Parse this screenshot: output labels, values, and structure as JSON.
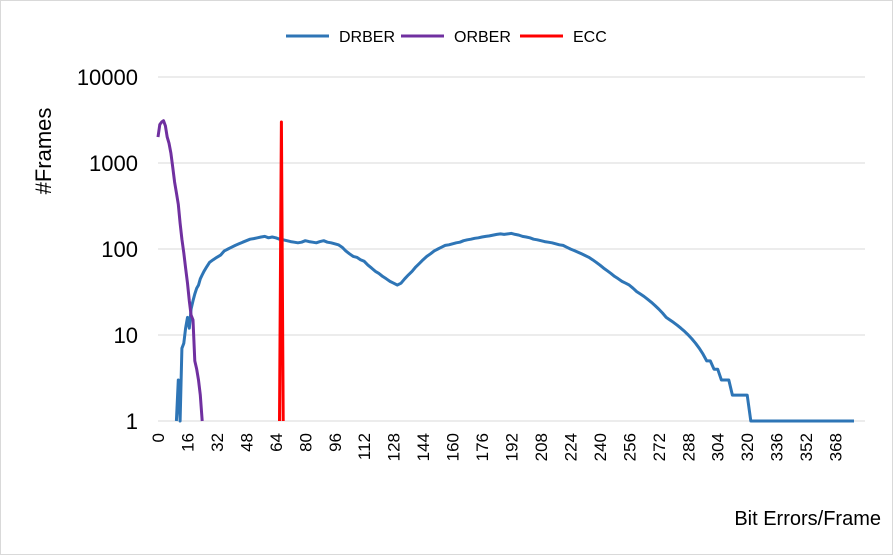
{
  "chart_data": {
    "type": "line",
    "title": "",
    "xlabel": "Bit Errors/Frame",
    "ylabel": "#Frames",
    "y_scale": "log",
    "ylim": [
      1,
      10000
    ],
    "xlim": [
      0,
      384
    ],
    "grid": "horizontal",
    "legend": {
      "position": "top",
      "entries": [
        "DRBER",
        "ORBER",
        "ECC"
      ]
    },
    "x_ticks": [
      0,
      16,
      32,
      48,
      64,
      80,
      96,
      112,
      128,
      144,
      160,
      176,
      192,
      208,
      224,
      240,
      256,
      272,
      288,
      304,
      320,
      336,
      352,
      368
    ],
    "y_ticks": [
      1,
      10,
      100,
      1000,
      10000
    ],
    "series": [
      {
        "name": "DRBER",
        "color": "#2e75b6",
        "points": [
          [
            10,
            1
          ],
          [
            11,
            3
          ],
          [
            12,
            1
          ],
          [
            13,
            7
          ],
          [
            14,
            8
          ],
          [
            15,
            12
          ],
          [
            16,
            16
          ],
          [
            17,
            12
          ],
          [
            18,
            20
          ],
          [
            19,
            25
          ],
          [
            20,
            30
          ],
          [
            21,
            35
          ],
          [
            22,
            38
          ],
          [
            23,
            45
          ],
          [
            24,
            50
          ],
          [
            25,
            55
          ],
          [
            26,
            60
          ],
          [
            28,
            70
          ],
          [
            30,
            75
          ],
          [
            32,
            80
          ],
          [
            34,
            85
          ],
          [
            36,
            95
          ],
          [
            38,
            100
          ],
          [
            40,
            105
          ],
          [
            42,
            110
          ],
          [
            44,
            115
          ],
          [
            46,
            120
          ],
          [
            48,
            125
          ],
          [
            50,
            130
          ],
          [
            52,
            132
          ],
          [
            54,
            135
          ],
          [
            56,
            138
          ],
          [
            58,
            140
          ],
          [
            60,
            135
          ],
          [
            62,
            138
          ],
          [
            64,
            135
          ],
          [
            66,
            130
          ],
          [
            68,
            128
          ],
          [
            70,
            125
          ],
          [
            72,
            122
          ],
          [
            74,
            120
          ],
          [
            76,
            118
          ],
          [
            78,
            120
          ],
          [
            80,
            125
          ],
          [
            82,
            122
          ],
          [
            84,
            120
          ],
          [
            86,
            118
          ],
          [
            88,
            122
          ],
          [
            90,
            125
          ],
          [
            92,
            120
          ],
          [
            94,
            118
          ],
          [
            96,
            115
          ],
          [
            98,
            112
          ],
          [
            100,
            105
          ],
          [
            102,
            95
          ],
          [
            104,
            88
          ],
          [
            106,
            82
          ],
          [
            108,
            80
          ],
          [
            110,
            75
          ],
          [
            112,
            72
          ],
          [
            114,
            65
          ],
          [
            116,
            60
          ],
          [
            118,
            55
          ],
          [
            120,
            52
          ],
          [
            122,
            48
          ],
          [
            124,
            45
          ],
          [
            126,
            42
          ],
          [
            128,
            40
          ],
          [
            130,
            38
          ],
          [
            132,
            40
          ],
          [
            134,
            45
          ],
          [
            136,
            50
          ],
          [
            138,
            55
          ],
          [
            140,
            62
          ],
          [
            142,
            68
          ],
          [
            144,
            75
          ],
          [
            146,
            82
          ],
          [
            148,
            88
          ],
          [
            150,
            95
          ],
          [
            152,
            100
          ],
          [
            154,
            105
          ],
          [
            156,
            110
          ],
          [
            158,
            112
          ],
          [
            160,
            115
          ],
          [
            162,
            118
          ],
          [
            164,
            120
          ],
          [
            166,
            125
          ],
          [
            168,
            128
          ],
          [
            170,
            130
          ],
          [
            172,
            133
          ],
          [
            174,
            135
          ],
          [
            176,
            138
          ],
          [
            178,
            140
          ],
          [
            180,
            142
          ],
          [
            182,
            145
          ],
          [
            184,
            148
          ],
          [
            186,
            150
          ],
          [
            188,
            148
          ],
          [
            190,
            150
          ],
          [
            192,
            152
          ],
          [
            194,
            148
          ],
          [
            196,
            145
          ],
          [
            198,
            140
          ],
          [
            200,
            138
          ],
          [
            202,
            135
          ],
          [
            204,
            130
          ],
          [
            206,
            128
          ],
          [
            208,
            125
          ],
          [
            210,
            122
          ],
          [
            212,
            120
          ],
          [
            214,
            118
          ],
          [
            216,
            115
          ],
          [
            218,
            112
          ],
          [
            220,
            110
          ],
          [
            222,
            105
          ],
          [
            224,
            100
          ],
          [
            226,
            96
          ],
          [
            228,
            92
          ],
          [
            230,
            88
          ],
          [
            232,
            84
          ],
          [
            234,
            80
          ],
          [
            236,
            75
          ],
          [
            238,
            70
          ],
          [
            240,
            65
          ],
          [
            242,
            60
          ],
          [
            244,
            56
          ],
          [
            246,
            52
          ],
          [
            248,
            48
          ],
          [
            250,
            45
          ],
          [
            252,
            42
          ],
          [
            254,
            40
          ],
          [
            256,
            38
          ],
          [
            258,
            35
          ],
          [
            260,
            32
          ],
          [
            262,
            30
          ],
          [
            264,
            28
          ],
          [
            266,
            26
          ],
          [
            268,
            24
          ],
          [
            270,
            22
          ],
          [
            272,
            20
          ],
          [
            274,
            18
          ],
          [
            276,
            16
          ],
          [
            278,
            15
          ],
          [
            280,
            14
          ],
          [
            282,
            13
          ],
          [
            284,
            12
          ],
          [
            286,
            11
          ],
          [
            288,
            10
          ],
          [
            290,
            9
          ],
          [
            292,
            8
          ],
          [
            294,
            7
          ],
          [
            296,
            6
          ],
          [
            298,
            5
          ],
          [
            300,
            5
          ],
          [
            302,
            4
          ],
          [
            304,
            4
          ],
          [
            306,
            3
          ],
          [
            308,
            3
          ],
          [
            310,
            3
          ],
          [
            312,
            2
          ],
          [
            314,
            2
          ],
          [
            316,
            2
          ],
          [
            318,
            2
          ],
          [
            320,
            2
          ],
          [
            322,
            1
          ],
          [
            324,
            1
          ],
          [
            326,
            1
          ],
          [
            328,
            1
          ],
          [
            330,
            1
          ],
          [
            332,
            1
          ],
          [
            334,
            1
          ],
          [
            336,
            1
          ],
          [
            338,
            1
          ],
          [
            340,
            1
          ],
          [
            342,
            1
          ],
          [
            344,
            1
          ],
          [
            346,
            1
          ],
          [
            348,
            1
          ],
          [
            350,
            1
          ],
          [
            352,
            1
          ],
          [
            354,
            1
          ],
          [
            356,
            1
          ],
          [
            358,
            1
          ],
          [
            360,
            1
          ],
          [
            362,
            1
          ],
          [
            364,
            1
          ],
          [
            366,
            1
          ],
          [
            368,
            1
          ],
          [
            370,
            1
          ],
          [
            372,
            1
          ],
          [
            374,
            1
          ],
          [
            376,
            1
          ],
          [
            378,
            1
          ]
        ]
      },
      {
        "name": "ORBER",
        "color": "#7030a0",
        "points": [
          [
            0,
            2000
          ],
          [
            1,
            2800
          ],
          [
            2,
            3000
          ],
          [
            3,
            3100
          ],
          [
            4,
            2700
          ],
          [
            5,
            2000
          ],
          [
            6,
            1700
          ],
          [
            7,
            1300
          ],
          [
            8,
            900
          ],
          [
            9,
            600
          ],
          [
            10,
            450
          ],
          [
            11,
            330
          ],
          [
            12,
            200
          ],
          [
            13,
            130
          ],
          [
            14,
            90
          ],
          [
            15,
            60
          ],
          [
            16,
            40
          ],
          [
            17,
            25
          ],
          [
            18,
            17
          ],
          [
            19,
            15
          ],
          [
            20,
            5
          ],
          [
            21,
            4
          ],
          [
            22,
            3
          ],
          [
            23,
            2
          ],
          [
            24,
            1
          ]
        ]
      },
      {
        "name": "ECC",
        "color": "#ff0000",
        "points": [
          [
            66,
            1
          ],
          [
            67,
            3000
          ],
          [
            68,
            1
          ]
        ]
      }
    ]
  }
}
